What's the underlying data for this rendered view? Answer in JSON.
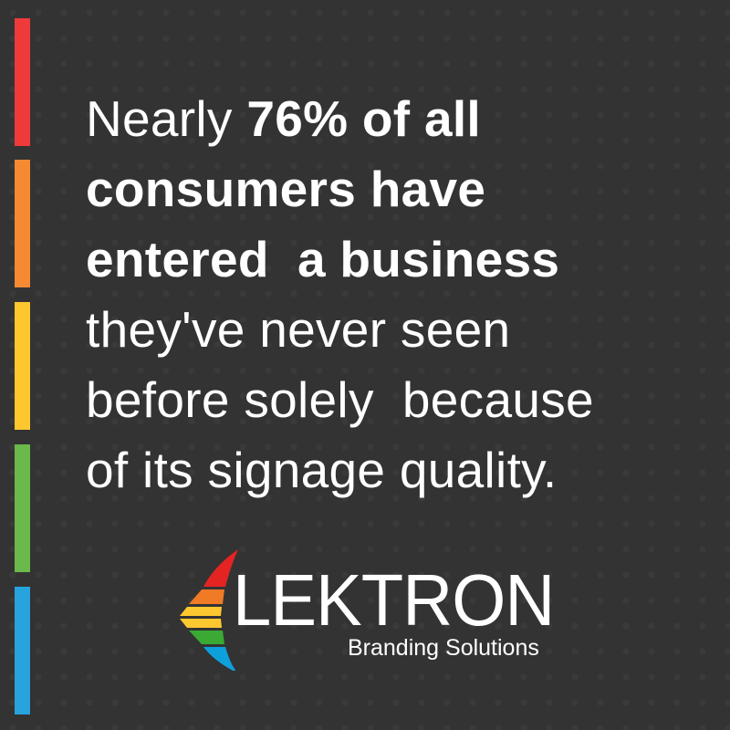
{
  "colors": {
    "background": "#333333",
    "bars": [
      "#ef3a3a",
      "#f68a33",
      "#fdc72f",
      "#6ab94a",
      "#27a4dd"
    ]
  },
  "quote": {
    "lines": [
      [
        {
          "t": "Nearly ",
          "bold": false
        },
        {
          "t": "76% of all",
          "bold": true
        }
      ],
      [
        {
          "t": "consumers have",
          "bold": true
        }
      ],
      [
        {
          "t": "entered  a business",
          "bold": true
        }
      ],
      [
        {
          "t": "they've never seen",
          "bold": false
        }
      ],
      [
        {
          "t": "before solely  because",
          "bold": false
        }
      ],
      [
        {
          "t": "of its signage quality.",
          "bold": false
        }
      ]
    ]
  },
  "logo": {
    "name": "LEKTRON",
    "tagline": "Branding Solutions",
    "icon": "rainbow-chevron-icon"
  }
}
